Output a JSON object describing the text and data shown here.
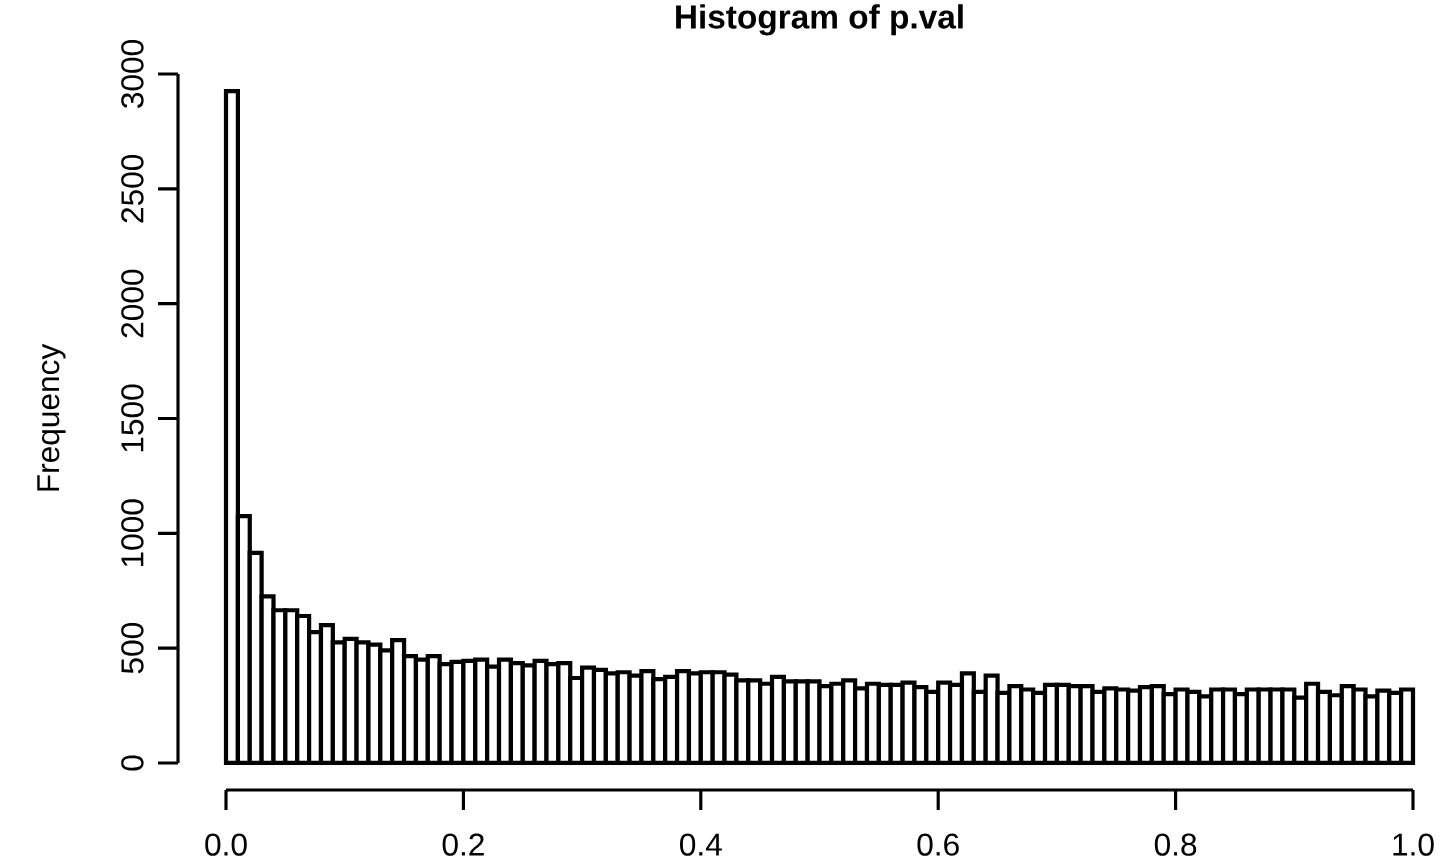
{
  "chart_data": {
    "type": "histogram",
    "title": "Histogram of p.val",
    "ylabel": "Frequency",
    "bins": [
      0,
      0.01,
      0.02,
      0.03,
      0.04,
      0.05,
      0.06,
      0.07,
      0.08,
      0.09,
      0.1,
      0.11,
      0.12,
      0.13,
      0.14,
      0.15,
      0.16,
      0.17,
      0.18,
      0.19,
      0.2,
      0.21,
      0.22,
      0.23,
      0.24,
      0.25,
      0.26,
      0.27,
      0.28,
      0.29,
      0.3,
      0.31,
      0.32,
      0.33,
      0.34,
      0.35,
      0.36,
      0.37,
      0.38,
      0.39,
      0.4,
      0.41,
      0.42,
      0.43,
      0.44,
      0.45,
      0.46,
      0.47,
      0.48,
      0.49,
      0.5,
      0.51,
      0.52,
      0.53,
      0.54,
      0.55,
      0.56,
      0.57,
      0.58,
      0.59,
      0.6,
      0.61,
      0.62,
      0.63,
      0.64,
      0.65,
      0.66,
      0.67,
      0.68,
      0.69,
      0.7,
      0.71,
      0.72,
      0.73,
      0.74,
      0.75,
      0.76,
      0.77,
      0.78,
      0.79,
      0.8,
      0.81,
      0.82,
      0.83,
      0.84,
      0.85,
      0.86,
      0.87,
      0.88,
      0.89,
      0.9,
      0.91,
      0.92,
      0.93,
      0.94,
      0.95,
      0.96,
      0.97,
      0.98,
      0.99,
      1
    ],
    "values": [
      2925,
      1075,
      915,
      725,
      665,
      665,
      640,
      570,
      600,
      525,
      540,
      525,
      515,
      490,
      535,
      465,
      450,
      465,
      430,
      440,
      445,
      450,
      420,
      450,
      435,
      425,
      445,
      430,
      435,
      370,
      415,
      405,
      390,
      395,
      380,
      400,
      365,
      375,
      400,
      390,
      395,
      395,
      385,
      360,
      360,
      345,
      375,
      355,
      355,
      355,
      335,
      345,
      360,
      325,
      345,
      340,
      340,
      350,
      330,
      310,
      350,
      340,
      390,
      310,
      380,
      305,
      335,
      320,
      305,
      340,
      340,
      335,
      335,
      310,
      325,
      320,
      315,
      330,
      335,
      300,
      320,
      310,
      290,
      320,
      320,
      300,
      320,
      320,
      320,
      320,
      285,
      345,
      310,
      295,
      335,
      320,
      290,
      315,
      305,
      320
    ],
    "color": "#ffffff",
    "xlim": [
      0,
      1
    ],
    "ylim": [
      0,
      3000
    ],
    "xticks": [
      {
        "value": 0,
        "label": "0.0"
      },
      {
        "value": 0.2,
        "label": "0.2"
      },
      {
        "value": 0.4,
        "label": "0.4"
      },
      {
        "value": 0.6,
        "label": "0.6"
      },
      {
        "value": 0.8,
        "label": "0.8"
      },
      {
        "value": 1,
        "label": "1.0"
      }
    ],
    "yticks": [
      0,
      500,
      1000,
      1500,
      2000,
      2500,
      3000
    ]
  }
}
